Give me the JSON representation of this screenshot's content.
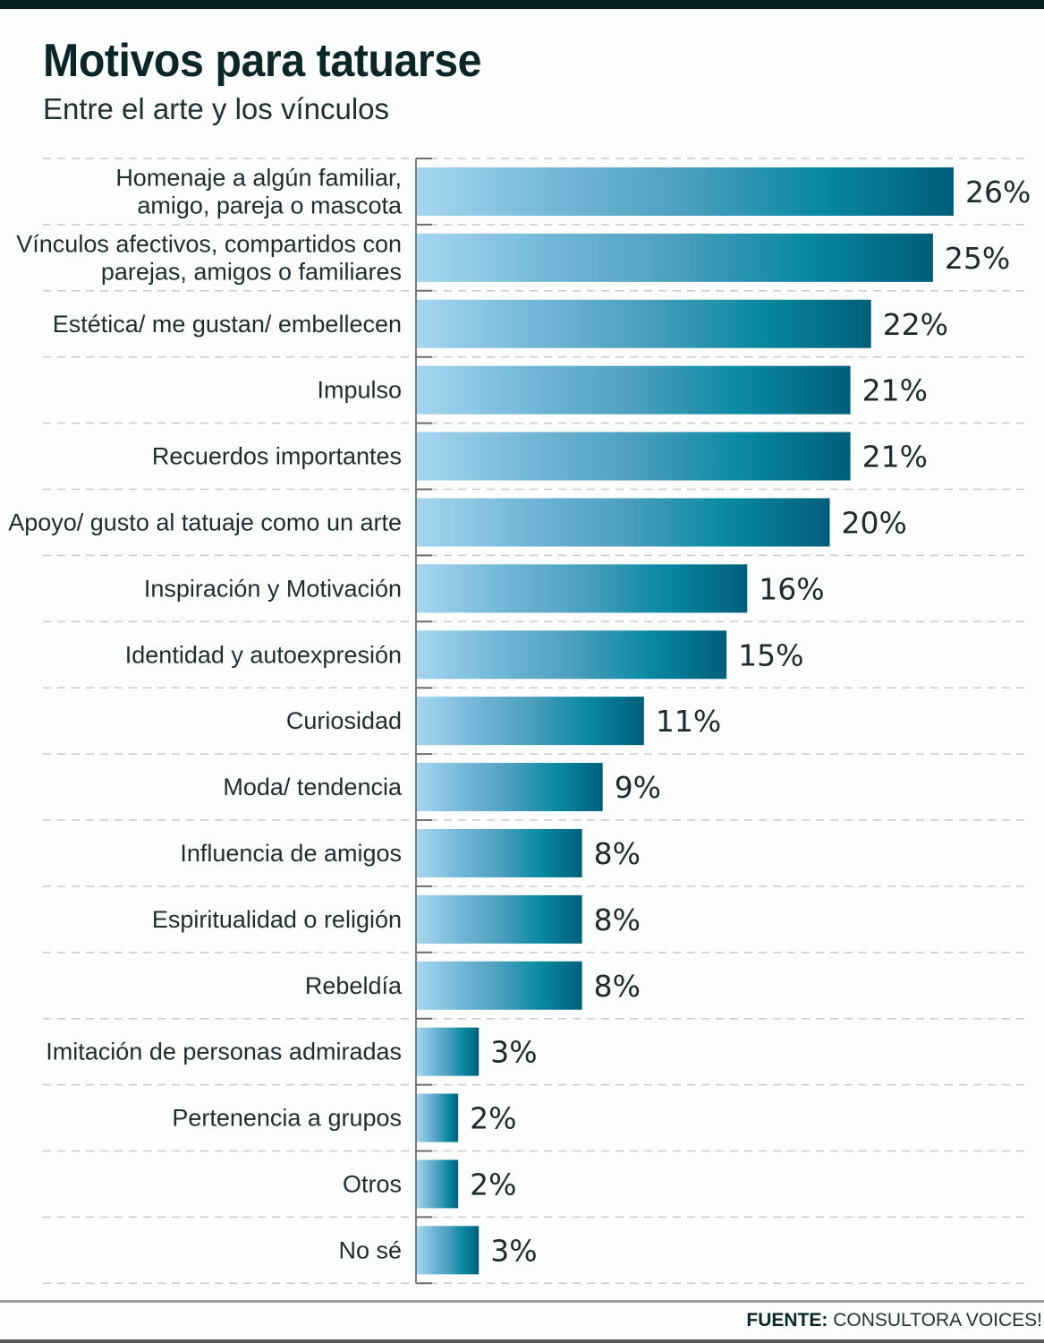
{
  "header": {
    "title": "Motivos para tatuarse",
    "subtitle": "Entre el arte y los vínculos"
  },
  "footer": {
    "source_label": "FUENTE:",
    "source_value": "CONSULTORA VOICES!"
  },
  "colors": {
    "bar_gradient": [
      "#a6d6f0",
      "#74b8d8",
      "#4c9fbe",
      "#0a89a3",
      "#005f7a"
    ],
    "top_bar": "#03201f",
    "text": "#1f2d2e"
  },
  "chart_data": {
    "type": "bar",
    "orientation": "horizontal",
    "title": "Motivos para tatuarse",
    "subtitle": "Entre el arte y los vínculos",
    "xlabel": "",
    "ylabel": "",
    "xlim": [
      0,
      26
    ],
    "grid": "dashed horizontal separators",
    "categories": [
      [
        "Homenaje a algún familiar,",
        "amigo, pareja o mascota"
      ],
      [
        "Vínculos afectivos, compartidos con",
        "parejas, amigos o familiares"
      ],
      [
        "Estética/ me gustan/ embellecen"
      ],
      [
        "Impulso"
      ],
      [
        "Recuerdos importantes"
      ],
      [
        "Apoyo/ gusto al tatuaje como un arte"
      ],
      [
        "Inspiración y Motivación"
      ],
      [
        "Identidad y autoexpresión"
      ],
      [
        "Curiosidad"
      ],
      [
        "Moda/ tendencia"
      ],
      [
        "Influencia de amigos"
      ],
      [
        "Espiritualidad o religión"
      ],
      [
        "Rebeldía"
      ],
      [
        "Imitación de personas admiradas"
      ],
      [
        "Pertenencia a grupos"
      ],
      [
        "Otros"
      ],
      [
        "No sé"
      ]
    ],
    "values": [
      26,
      25,
      22,
      21,
      21,
      20,
      16,
      15,
      11,
      9,
      8,
      8,
      8,
      3,
      2,
      2,
      3
    ],
    "value_labels": [
      "26%",
      "25%",
      "22%",
      "21%",
      "21%",
      "20%",
      "16%",
      "15%",
      "11%",
      "9%",
      "8%",
      "8%",
      "8%",
      "3%",
      "2%",
      "2%",
      "3%"
    ],
    "unit": "%"
  }
}
